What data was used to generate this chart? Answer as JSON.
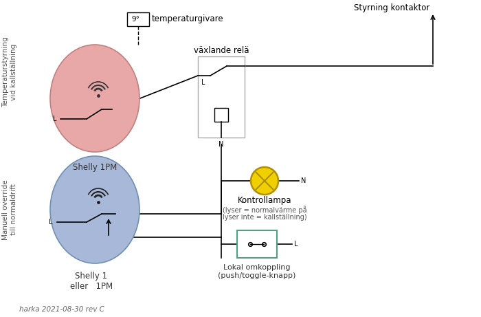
{
  "bg_color": "#ffffff",
  "pink_color": "#e8a8a8",
  "pink_edge": "#c08080",
  "blue_color": "#a8b8d8",
  "blue_edge": "#7090b0",
  "yellow_color": "#f0d000",
  "yellow_edge": "#b09000",
  "switch_box_edge": "#50a080",
  "label_top_left": "Temperaturstyrning\nvid kallställning",
  "label_bottom_left": "Manuell override\ntill normaldrift",
  "label_shelly1": "Shelly 1PM",
  "label_shelly2": "Shelly 1\neller   1PM",
  "label_temp": "temperaturgivare",
  "label_relay": "växlande relä",
  "label_lamp": "Kontrollampa",
  "label_lamp_sub1": "(lyser = normalvärme på",
  "label_lamp_sub2": "lyser inte = kallställning)",
  "label_switch": "Lokal omkoppling\n(push/toggle-knapp)",
  "label_kontaktor": "Styrning kontaktor",
  "label_footer": "harka 2021-08-30 rev C",
  "temp_symbol": "9°"
}
